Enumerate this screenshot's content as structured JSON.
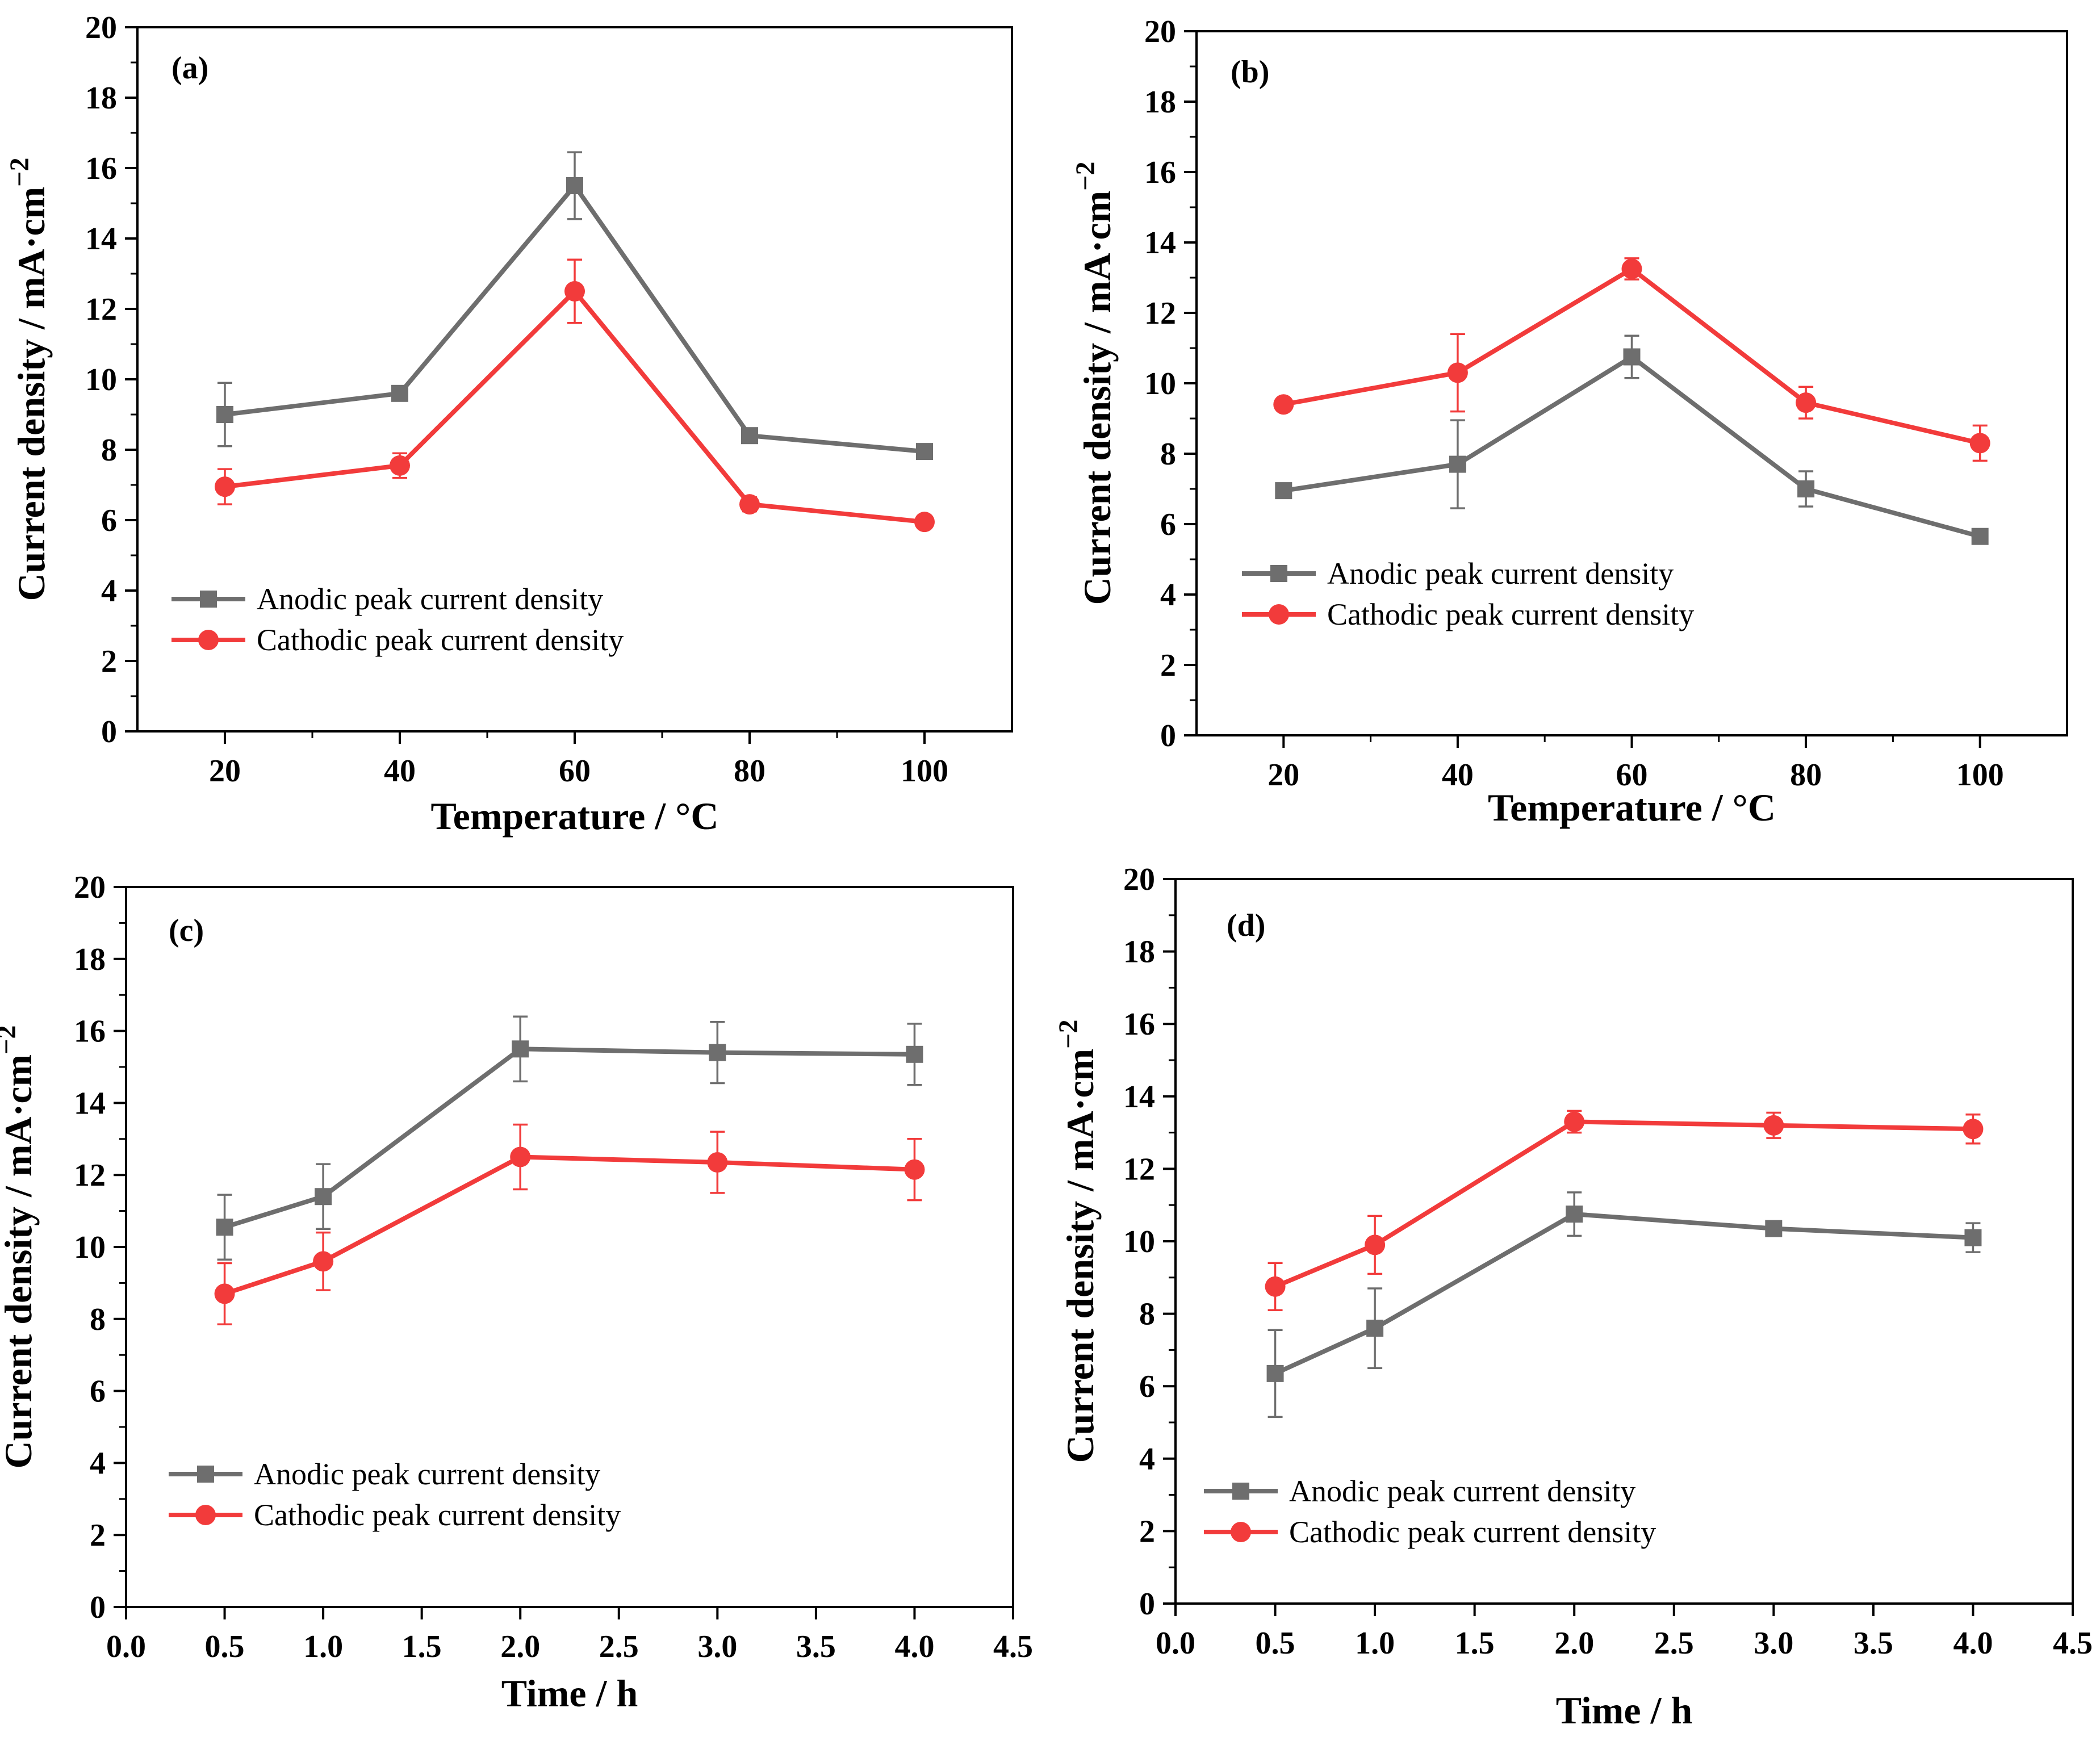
{
  "colors": {
    "anodic": "#6e6e6e",
    "cathodic": "#f23b3b",
    "axis": "#000000"
  },
  "chart_data": [
    {
      "panel": "(a)",
      "type": "line",
      "xlabel": "Temperature / °C",
      "ylabel": "Current density / mA·cm",
      "ylabel_sup": "−2",
      "xlim": [
        10,
        110
      ],
      "ylim": [
        0,
        20
      ],
      "xticks": [
        20,
        40,
        60,
        80,
        100
      ],
      "xtick_labels": [
        "20",
        "40",
        "60",
        "80",
        "100"
      ],
      "yticks": [
        0,
        2,
        4,
        6,
        8,
        10,
        12,
        14,
        16,
        18,
        20
      ],
      "ytick_labels": [
        "0",
        "2",
        "4",
        "6",
        "8",
        "10",
        "12",
        "14",
        "16",
        "18",
        "20"
      ],
      "x": [
        20,
        40,
        60,
        80,
        100
      ],
      "series": [
        {
          "name": "Anodic peak current density",
          "marker": "square",
          "color": "#6e6e6e",
          "values": [
            9.0,
            9.6,
            15.5,
            8.4,
            7.95
          ],
          "errors": [
            0.9,
            0.2,
            0.95,
            0.1,
            0.1
          ]
        },
        {
          "name": "Cathodic peak current density",
          "marker": "circle",
          "color": "#f23b3b",
          "values": [
            6.95,
            7.55,
            12.5,
            6.45,
            5.95
          ],
          "errors": [
            0.5,
            0.35,
            0.9,
            0.2,
            0.1
          ]
        }
      ]
    },
    {
      "panel": "(b)",
      "type": "line",
      "xlabel": "Temperature / °C",
      "ylabel": "Current density / mA·cm",
      "ylabel_sup": "−2",
      "xlim": [
        10,
        110
      ],
      "ylim": [
        0,
        20
      ],
      "xticks": [
        20,
        40,
        60,
        80,
        100
      ],
      "xtick_labels": [
        "20",
        "40",
        "60",
        "80",
        "100"
      ],
      "yticks": [
        0,
        2,
        4,
        6,
        8,
        10,
        12,
        14,
        16,
        18,
        20
      ],
      "ytick_labels": [
        "0",
        "2",
        "4",
        "6",
        "8",
        "10",
        "12",
        "14",
        "16",
        "18",
        "20"
      ],
      "x": [
        20,
        40,
        60,
        80,
        100
      ],
      "series": [
        {
          "name": "Anodic peak current density",
          "marker": "square",
          "color": "#6e6e6e",
          "values": [
            6.95,
            7.7,
            10.75,
            7.0,
            5.65
          ],
          "errors": [
            0.1,
            1.25,
            0.6,
            0.5,
            0.1
          ]
        },
        {
          "name": "Cathodic peak current density",
          "marker": "circle",
          "color": "#f23b3b",
          "values": [
            9.4,
            10.3,
            13.25,
            9.45,
            8.3
          ],
          "errors": [
            0.1,
            1.1,
            0.3,
            0.45,
            0.5
          ]
        }
      ]
    },
    {
      "panel": "(c)",
      "type": "line",
      "xlabel": "Time / h",
      "ylabel": "Current density / mA·cm",
      "ylabel_sup": "−2",
      "xlim": [
        0,
        4.5
      ],
      "ylim": [
        0,
        20
      ],
      "xticks": [
        0,
        0.5,
        1,
        1.5,
        2,
        2.5,
        3,
        3.5,
        4,
        4.5
      ],
      "xtick_labels": [
        "0.0",
        "0.5",
        "1.0",
        "1.5",
        "2.0",
        "2.5",
        "3.0",
        "3.5",
        "4.0",
        "4.5"
      ],
      "yticks": [
        0,
        2,
        4,
        6,
        8,
        10,
        12,
        14,
        16,
        18,
        20
      ],
      "ytick_labels": [
        "0",
        "2",
        "4",
        "6",
        "8",
        "10",
        "12",
        "14",
        "16",
        "18",
        "20"
      ],
      "x": [
        0.5,
        1.0,
        2.0,
        3.0,
        4.0
      ],
      "series": [
        {
          "name": "Anodic peak current density",
          "marker": "square",
          "color": "#6e6e6e",
          "values": [
            10.55,
            11.4,
            15.5,
            15.4,
            15.35
          ],
          "errors": [
            0.9,
            0.9,
            0.9,
            0.85,
            0.85
          ]
        },
        {
          "name": "Cathodic peak current density",
          "marker": "circle",
          "color": "#f23b3b",
          "values": [
            8.7,
            9.6,
            12.5,
            12.35,
            12.15
          ],
          "errors": [
            0.85,
            0.8,
            0.9,
            0.85,
            0.85
          ]
        }
      ]
    },
    {
      "panel": "(d)",
      "type": "line",
      "xlabel": "Time / h",
      "ylabel": "Current density / mA·cm",
      "ylabel_sup": "−2",
      "xlim": [
        0,
        4.5
      ],
      "ylim": [
        0,
        20
      ],
      "xticks": [
        0,
        0.5,
        1,
        1.5,
        2,
        2.5,
        3,
        3.5,
        4,
        4.5
      ],
      "xtick_labels": [
        "0.0",
        "0.5",
        "1.0",
        "1.5",
        "2.0",
        "2.5",
        "3.0",
        "3.5",
        "4.0",
        "4.5"
      ],
      "yticks": [
        0,
        2,
        4,
        6,
        8,
        10,
        12,
        14,
        16,
        18,
        20
      ],
      "ytick_labels": [
        "0",
        "2",
        "4",
        "6",
        "8",
        "10",
        "12",
        "14",
        "16",
        "18",
        "20"
      ],
      "x": [
        0.5,
        1.0,
        2.0,
        3.0,
        4.0
      ],
      "series": [
        {
          "name": "Anodic peak current density",
          "marker": "square",
          "color": "#6e6e6e",
          "values": [
            6.35,
            7.6,
            10.75,
            10.35,
            10.1
          ],
          "errors": [
            1.2,
            1.1,
            0.6,
            0.1,
            0.4
          ]
        },
        {
          "name": "Cathodic peak current density",
          "marker": "circle",
          "color": "#f23b3b",
          "values": [
            8.75,
            9.9,
            13.3,
            13.2,
            13.1
          ],
          "errors": [
            0.65,
            0.8,
            0.3,
            0.35,
            0.4
          ]
        }
      ]
    }
  ]
}
